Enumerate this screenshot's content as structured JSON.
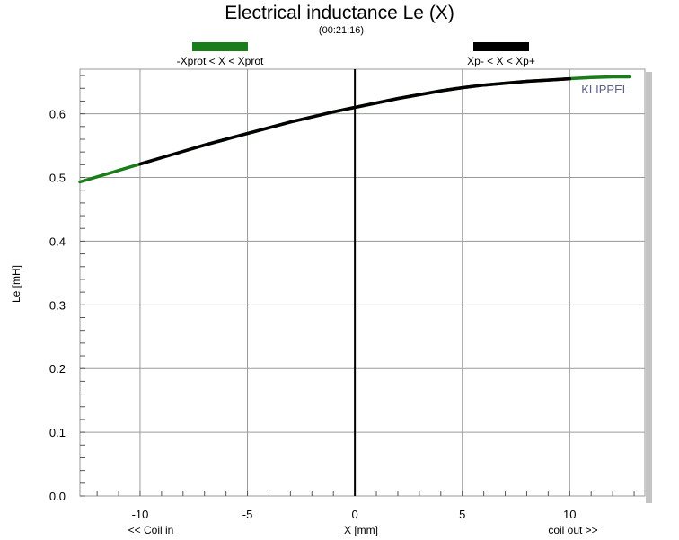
{
  "chart_data": {
    "type": "line",
    "title": "Electrical inductance Le (X)",
    "subtitle": "(00:21:16)",
    "xlabel": "X [mm]",
    "ylabel": "Le [mH]",
    "x_note_left": "<< Coil in",
    "x_note_right": "coil out >>",
    "brand": "KLIPPEL",
    "xlim": [
      -12.8,
      13.5
    ],
    "ylim": [
      0.0,
      0.67
    ],
    "xticks": [
      -10,
      -5,
      0,
      5,
      10
    ],
    "xtick_labels": [
      "-10",
      "-5",
      "0",
      "5",
      "10"
    ],
    "yticks": [
      0.0,
      0.1,
      0.2,
      0.3,
      0.4,
      0.5,
      0.6
    ],
    "ytick_labels": [
      "0.0",
      "0.1",
      "0.2",
      "0.3",
      "0.4",
      "0.5",
      "0.6"
    ],
    "grid": true,
    "legend": [
      {
        "label": "-Xprot < X < Xprot",
        "color": "#1a7d1a"
      },
      {
        "label": "Xp- < X < Xp+",
        "color": "#000000"
      }
    ],
    "series": [
      {
        "color": "#1a7d1a",
        "x": [
          -12.8,
          -12,
          -11,
          -10,
          -9,
          -8,
          -7,
          -6,
          -5,
          -4,
          -3,
          -2,
          -1,
          0,
          1,
          2,
          3,
          4,
          5,
          6,
          7,
          8,
          9,
          10,
          11,
          12,
          12.8
        ],
        "y": [
          0.493,
          0.501,
          0.511,
          0.521,
          0.531,
          0.541,
          0.551,
          0.56,
          0.569,
          0.578,
          0.587,
          0.595,
          0.603,
          0.61,
          0.617,
          0.624,
          0.63,
          0.636,
          0.641,
          0.645,
          0.648,
          0.651,
          0.653,
          0.655,
          0.657,
          0.658,
          0.658
        ]
      },
      {
        "color": "#000000",
        "x": [
          -10,
          -9,
          -8,
          -7,
          -6,
          -5,
          -4,
          -3,
          -2,
          -1,
          0,
          1,
          2,
          3,
          4,
          5,
          6,
          7,
          8,
          9,
          10
        ],
        "y": [
          0.521,
          0.531,
          0.541,
          0.551,
          0.56,
          0.569,
          0.578,
          0.587,
          0.595,
          0.603,
          0.61,
          0.617,
          0.624,
          0.63,
          0.636,
          0.641,
          0.645,
          0.648,
          0.651,
          0.653,
          0.655
        ]
      }
    ]
  }
}
